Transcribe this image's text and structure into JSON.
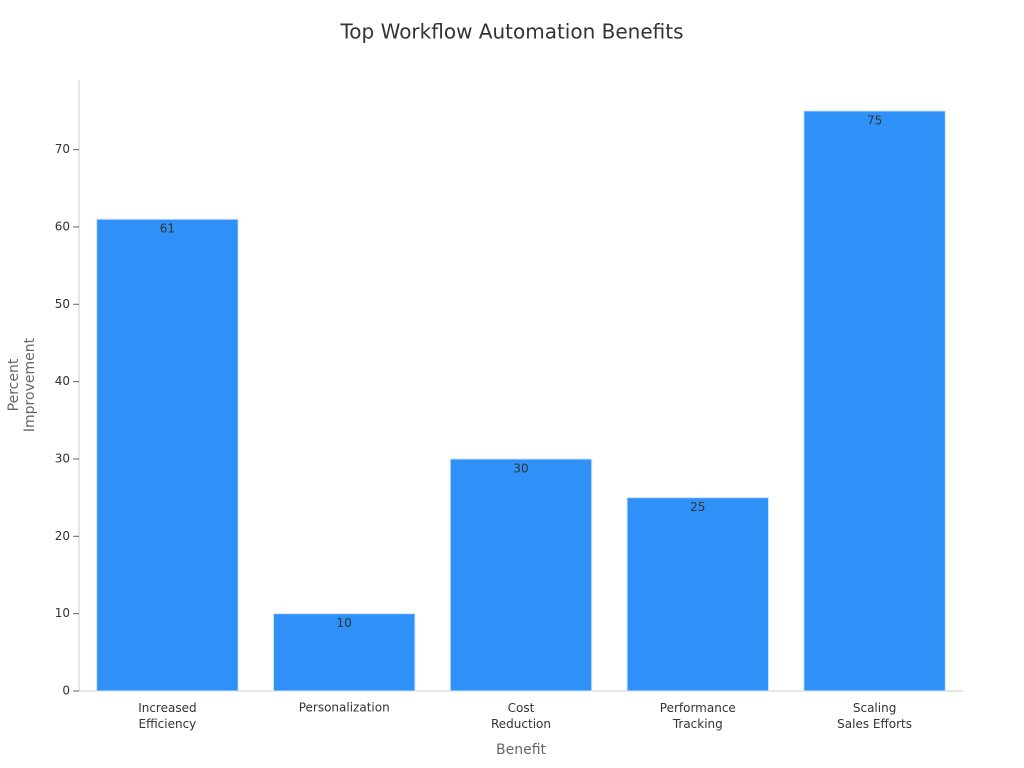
{
  "chart_data": {
    "type": "bar",
    "title": "Top Workflow Automation Benefits",
    "x_label": "Benefit",
    "y_label": "Percent\nImprovement",
    "categories": [
      "Increased\nEfficiency",
      "Personalization",
      "Cost\nReduction",
      "Performance\nTracking",
      "Scaling\nSales Efforts"
    ],
    "values": [
      61,
      10,
      30,
      25,
      75
    ],
    "color": "#2f91f7",
    "ylim": [
      0,
      79
    ],
    "yticks": [
      0,
      10,
      20,
      30,
      40,
      50,
      60,
      70
    ],
    "grid": false
  }
}
